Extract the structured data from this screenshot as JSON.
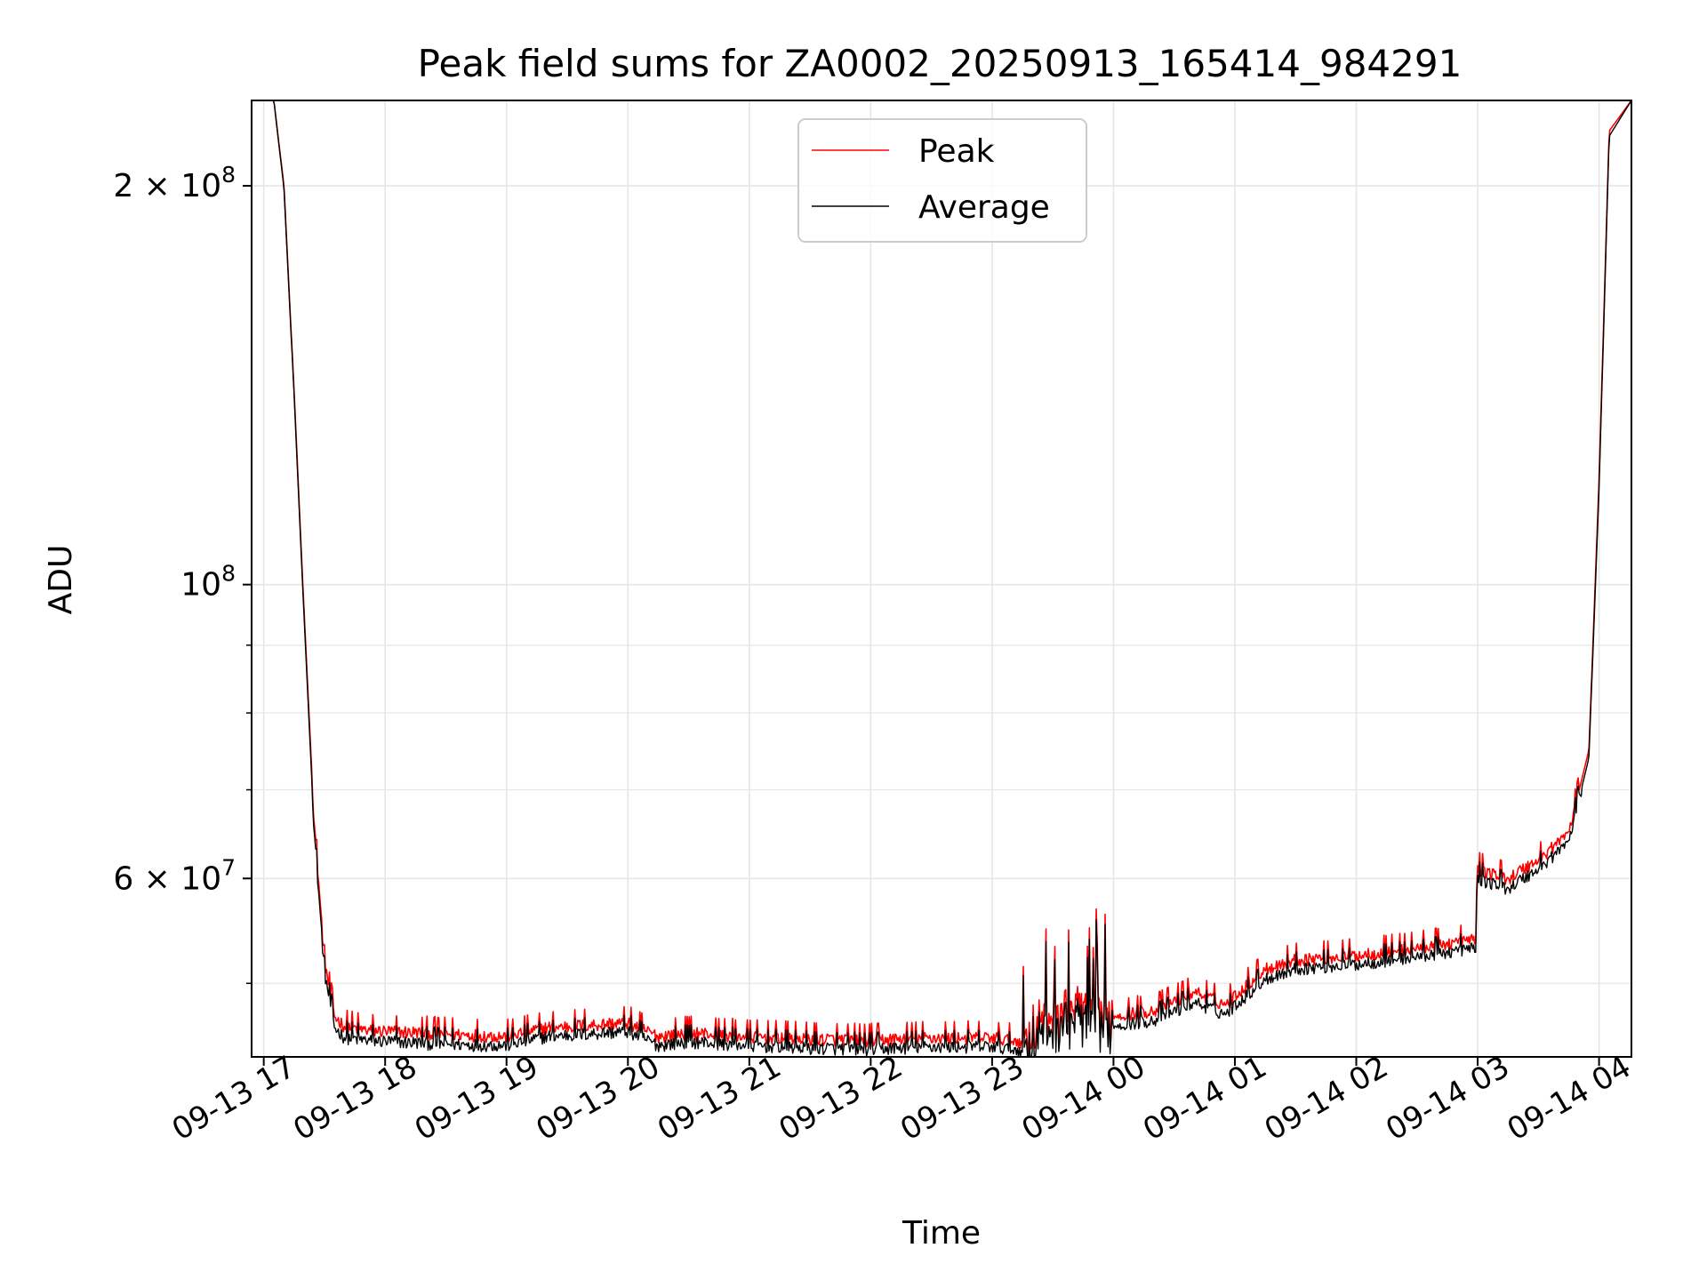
{
  "chart_data": {
    "type": "line",
    "title": "Peak field sums for ZA0002_20250913_165414_984291",
    "xlabel": "Time",
    "ylabel": "ADU",
    "yscale": "log",
    "ylim": [
      44000000,
      232000000
    ],
    "xlim": [
      "2025-09-13 16:54",
      "2025-09-14 04:16"
    ],
    "grid": true,
    "legend_position": "upper center",
    "x_ticks": [
      {
        "t": "2025-09-13 17:00",
        "label": "09-13 17"
      },
      {
        "t": "2025-09-13 18:00",
        "label": "09-13 18"
      },
      {
        "t": "2025-09-13 19:00",
        "label": "09-13 19"
      },
      {
        "t": "2025-09-13 20:00",
        "label": "09-13 20"
      },
      {
        "t": "2025-09-13 21:00",
        "label": "09-13 21"
      },
      {
        "t": "2025-09-13 22:00",
        "label": "09-13 22"
      },
      {
        "t": "2025-09-13 23:00",
        "label": "09-13 23"
      },
      {
        "t": "2025-09-14 00:00",
        "label": "09-14 00"
      },
      {
        "t": "2025-09-14 01:00",
        "label": "09-14 01"
      },
      {
        "t": "2025-09-14 02:00",
        "label": "09-14 02"
      },
      {
        "t": "2025-09-14 03:00",
        "label": "09-14 03"
      },
      {
        "t": "2025-09-14 04:00",
        "label": "09-14 04"
      }
    ],
    "y_major_ticks": [
      {
        "value": 60000000,
        "mantissa": "6 × 10",
        "exp": "7"
      },
      {
        "value": 100000000,
        "mantissa": "10",
        "exp": "8"
      },
      {
        "value": 200000000,
        "mantissa": "2 × 10",
        "exp": "8"
      }
    ],
    "y_minor_ticks": [
      50000000,
      70000000,
      80000000,
      90000000
    ],
    "series": [
      {
        "name": "Peak",
        "color": "#ff0000",
        "x": [
          "2025-09-13 16:54",
          "2025-09-13 17:05",
          "2025-09-13 17:10",
          "2025-09-13 17:15",
          "2025-09-13 17:20",
          "2025-09-13 17:25",
          "2025-09-13 17:30",
          "2025-09-13 17:35",
          "2025-09-13 17:40",
          "2025-09-13 17:50",
          "2025-09-13 18:00",
          "2025-09-13 18:30",
          "2025-09-13 19:00",
          "2025-09-13 19:20",
          "2025-09-13 19:40",
          "2025-09-13 20:00",
          "2025-09-13 20:15",
          "2025-09-13 20:30",
          "2025-09-13 21:00",
          "2025-09-13 21:30",
          "2025-09-13 22:00",
          "2025-09-13 22:30",
          "2025-09-13 23:00",
          "2025-09-13 23:15",
          "2025-09-13 23:20",
          "2025-09-13 23:30",
          "2025-09-13 23:40",
          "2025-09-13 23:50",
          "2025-09-14 00:00",
          "2025-09-14 00:20",
          "2025-09-14 00:40",
          "2025-09-14 00:55",
          "2025-09-14 01:15",
          "2025-09-14 01:30",
          "2025-09-14 02:00",
          "2025-09-14 02:30",
          "2025-09-14 02:59",
          "2025-09-14 03:00",
          "2025-09-14 03:15",
          "2025-09-14 03:30",
          "2025-09-14 03:45",
          "2025-09-14 03:55",
          "2025-09-14 04:00",
          "2025-09-14 04:05",
          "2025-09-14 04:16"
        ],
        "values": [
          232000000,
          232000000,
          200000000,
          140000000,
          95000000,
          66000000,
          52000000,
          47200000,
          46400000,
          46100000,
          46000000,
          45800000,
          45600000,
          46300000,
          46500000,
          46700000,
          45600000,
          45900000,
          45600000,
          45400000,
          45300000,
          45500000,
          45500000,
          45200000,
          46300000,
          47600000,
          48000000,
          47500000,
          47300000,
          47700000,
          49300000,
          48200000,
          51300000,
          52100000,
          52500000,
          53200000,
          54000000,
          61000000,
          60000000,
          62000000,
          65000000,
          75000000,
          120000000,
          220000000,
          232000000
        ]
      },
      {
        "name": "Average",
        "color": "#000000",
        "x": [
          "2025-09-13 16:54",
          "2025-09-13 17:05",
          "2025-09-13 17:10",
          "2025-09-13 17:15",
          "2025-09-13 17:20",
          "2025-09-13 17:25",
          "2025-09-13 17:30",
          "2025-09-13 17:35",
          "2025-09-13 17:40",
          "2025-09-13 17:50",
          "2025-09-13 18:00",
          "2025-09-13 18:30",
          "2025-09-13 19:00",
          "2025-09-13 19:20",
          "2025-09-13 19:40",
          "2025-09-13 20:00",
          "2025-09-13 20:15",
          "2025-09-13 20:30",
          "2025-09-13 21:00",
          "2025-09-13 21:30",
          "2025-09-13 22:00",
          "2025-09-13 22:30",
          "2025-09-13 23:00",
          "2025-09-13 23:15",
          "2025-09-13 23:20",
          "2025-09-13 23:30",
          "2025-09-13 23:40",
          "2025-09-13 23:50",
          "2025-09-14 00:00",
          "2025-09-14 00:20",
          "2025-09-14 00:40",
          "2025-09-14 00:55",
          "2025-09-14 01:15",
          "2025-09-14 01:30",
          "2025-09-14 02:00",
          "2025-09-14 02:30",
          "2025-09-14 02:59",
          "2025-09-14 03:00",
          "2025-09-14 03:15",
          "2025-09-14 03:30",
          "2025-09-14 03:45",
          "2025-09-14 03:55",
          "2025-09-14 04:00",
          "2025-09-14 04:05",
          "2025-09-14 04:16"
        ],
        "values": [
          232000000,
          232000000,
          199000000,
          139000000,
          94000000,
          65000000,
          51000000,
          46300000,
          45500000,
          45300000,
          45200000,
          45000000,
          44900000,
          45600000,
          45800000,
          46000000,
          44900000,
          45200000,
          44900000,
          44700000,
          44600000,
          44800000,
          44800000,
          44500000,
          45400000,
          46500000,
          47000000,
          46600000,
          46500000,
          46900000,
          48400000,
          47400000,
          50400000,
          51300000,
          51700000,
          52400000,
          53200000,
          60000000,
          59000000,
          61000000,
          64000000,
          74000000,
          118000000,
          218000000,
          232000000
        ]
      }
    ]
  }
}
